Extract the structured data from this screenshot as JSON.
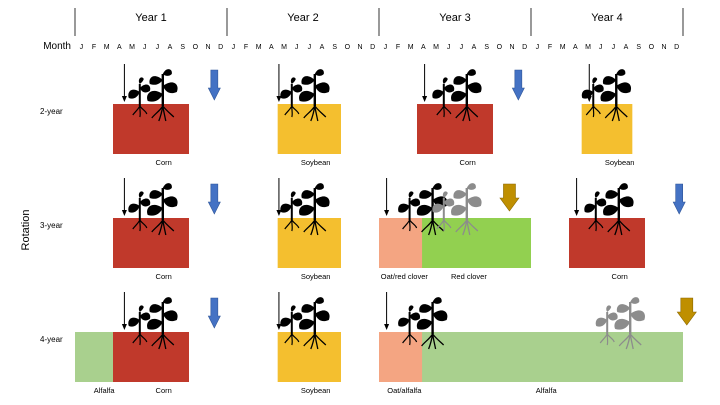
{
  "years": [
    "Year 1",
    "Year 2",
    "Year 3",
    "Year 4"
  ],
  "months_title": "Month",
  "months": [
    "J",
    "F",
    "M",
    "A",
    "M",
    "J",
    "J",
    "A",
    "S",
    "O",
    "N",
    "D"
  ],
  "y_axis_title": "Rotation",
  "colors": {
    "corn": "#c0392b",
    "soybean": "#f4bf2f",
    "oat": "#f4a582",
    "red_clover": "#92d050",
    "alfalfa": "#a9d08e",
    "harvest_blue": "#4472c4",
    "harvest_gold": "#bf8f00",
    "plant_dark": "#000000",
    "plant_gray": "#8c8c8c"
  },
  "rows": [
    {
      "label": "2-year",
      "blocks": [
        {
          "crop": "corn",
          "year": 1,
          "start_month": 4,
          "end_month": 9
        },
        {
          "crop": "soybean",
          "year": 2,
          "start_month": 5,
          "end_month": 9
        },
        {
          "crop": "corn",
          "year": 3,
          "start_month": 4,
          "end_month": 9
        },
        {
          "crop": "soybean",
          "year": 4,
          "start_month": 5,
          "end_month": 8
        }
      ],
      "labels": [
        {
          "text": "Corn",
          "year": 1,
          "month": 7
        },
        {
          "text": "Soybean",
          "year": 2,
          "month": 7
        },
        {
          "text": "Corn",
          "year": 3,
          "month": 7
        },
        {
          "text": "Soybean",
          "year": 4,
          "month": 7
        }
      ],
      "planting_arrows": [
        {
          "year": 1,
          "month": 3.9
        },
        {
          "year": 2,
          "month": 4.1
        },
        {
          "year": 3,
          "month": 3.6
        },
        {
          "year": 4,
          "month": 4.6
        }
      ],
      "harvest_arrows": [
        {
          "year": 1,
          "month": 11,
          "color": "blue"
        },
        {
          "year": 3,
          "month": 11,
          "color": "blue"
        }
      ],
      "plants": [
        {
          "year": 1,
          "month": 6.3,
          "color": "dark"
        },
        {
          "year": 2,
          "month": 6.3,
          "color": "dark"
        },
        {
          "year": 3,
          "month": 6.3,
          "color": "dark"
        },
        {
          "year": 4,
          "month": 6.1,
          "color": "dark"
        }
      ]
    },
    {
      "label": "3-year",
      "blocks": [
        {
          "crop": "corn",
          "year": 1,
          "start_month": 4,
          "end_month": 9
        },
        {
          "crop": "soybean",
          "year": 2,
          "start_month": 5,
          "end_month": 9
        },
        {
          "crop": "red_clover",
          "year": 3,
          "start_month": 1,
          "end_month": 12
        },
        {
          "crop": "oat",
          "year": 3,
          "start_month": 1,
          "end_month": 3.4
        },
        {
          "crop": "corn",
          "year": 4,
          "start_month": 4,
          "end_month": 9
        }
      ],
      "labels": [
        {
          "text": "Corn",
          "year": 1,
          "month": 7
        },
        {
          "text": "Soybean",
          "year": 2,
          "month": 7
        },
        {
          "text": "Oat/red clover",
          "year": 3,
          "month": 2
        },
        {
          "text": "Red clover",
          "year": 3,
          "month": 7.1
        },
        {
          "text": "Corn",
          "year": 4,
          "month": 7
        }
      ],
      "planting_arrows": [
        {
          "year": 1,
          "month": 3.9
        },
        {
          "year": 2,
          "month": 4.1
        },
        {
          "year": 3,
          "month": 0.6
        },
        {
          "year": 4,
          "month": 3.6
        }
      ],
      "harvest_arrows": [
        {
          "year": 1,
          "month": 11,
          "color": "blue"
        },
        {
          "year": 3,
          "month": 10.3,
          "color": "gold"
        },
        {
          "year": 4,
          "month": 11.7,
          "color": "blue"
        }
      ],
      "plants": [
        {
          "year": 1,
          "month": 6.3,
          "color": "dark"
        },
        {
          "year": 2,
          "month": 6.3,
          "color": "dark"
        },
        {
          "year": 3,
          "month": 3.6,
          "color": "dark"
        },
        {
          "year": 3,
          "month": 6.3,
          "color": "gray"
        },
        {
          "year": 4,
          "month": 6.3,
          "color": "dark"
        }
      ]
    },
    {
      "label": "4-year",
      "blocks": [
        {
          "crop": "alfalfa",
          "year": 1,
          "start_month": 1,
          "end_month": 4
        },
        {
          "crop": "corn",
          "year": 1,
          "start_month": 4,
          "end_month": 9
        },
        {
          "crop": "soybean",
          "year": 2,
          "start_month": 5,
          "end_month": 9
        },
        {
          "crop": "alfalfa",
          "year": 3,
          "start_month": 1,
          "end_month": 24
        },
        {
          "crop": "oat",
          "year": 3,
          "start_month": 1,
          "end_month": 3.4
        }
      ],
      "labels": [
        {
          "text": "Alfalfa",
          "year": 1,
          "month": 2.3
        },
        {
          "text": "Corn",
          "year": 1,
          "month": 7
        },
        {
          "text": "Soybean",
          "year": 2,
          "month": 7
        },
        {
          "text": "Oat/alfalfa",
          "year": 3,
          "month": 2
        },
        {
          "text": "Alfalfa",
          "year": 4,
          "month": 1.2
        }
      ],
      "planting_arrows": [
        {
          "year": 1,
          "month": 3.9
        },
        {
          "year": 2,
          "month": 4.1
        },
        {
          "year": 3,
          "month": 0.6
        }
      ],
      "harvest_arrows": [
        {
          "year": 1,
          "month": 11,
          "color": "blue"
        },
        {
          "year": 4,
          "month": 12.3,
          "color": "gold"
        }
      ],
      "plants": [
        {
          "year": 1,
          "month": 6.3,
          "color": "dark"
        },
        {
          "year": 2,
          "month": 6.3,
          "color": "dark"
        },
        {
          "year": 3,
          "month": 3.6,
          "color": "dark"
        },
        {
          "year": 4,
          "month": 7.2,
          "color": "gray"
        }
      ]
    }
  ]
}
